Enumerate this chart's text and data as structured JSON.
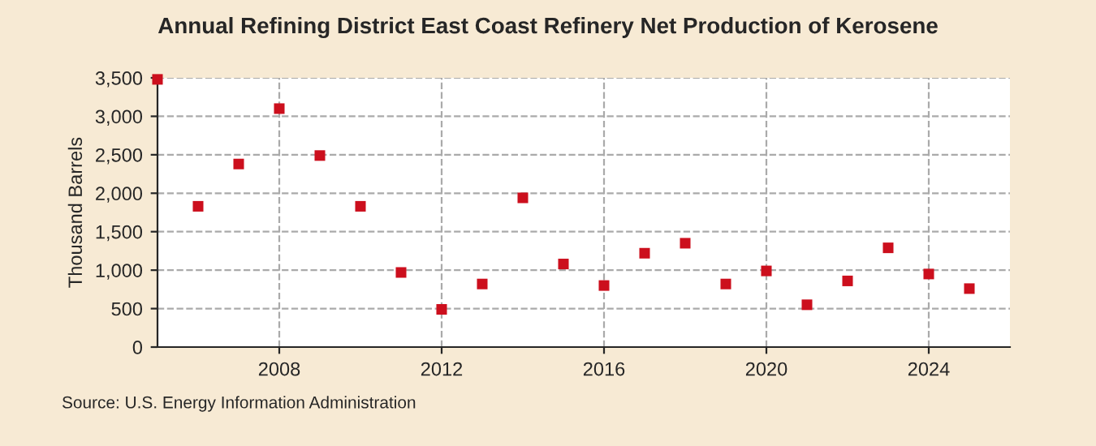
{
  "chart_data": {
    "type": "scatter",
    "title": "Annual Refining District East Coast Refinery Net Production of Kerosene",
    "ylabel": "Thousand Barrels",
    "x": [
      2005,
      2006,
      2007,
      2008,
      2009,
      2010,
      2011,
      2012,
      2013,
      2014,
      2015,
      2016,
      2017,
      2018,
      2019,
      2020,
      2021,
      2022,
      2023,
      2024,
      2025
    ],
    "series": [
      {
        "color": "#cc0f1d",
        "values": [
          3480,
          1830,
          2380,
          3100,
          2490,
          1830,
          970,
          490,
          820,
          1940,
          1080,
          800,
          1220,
          1350,
          820,
          990,
          550,
          860,
          1290,
          950,
          760
        ]
      }
    ],
    "xlim": [
      2005,
      2026
    ],
    "xticks": [
      2008,
      2012,
      2016,
      2020,
      2024
    ],
    "ylim": [
      0,
      3500
    ],
    "yticks": [
      {
        "value": 0,
        "label": "0"
      },
      {
        "value": 500,
        "label": "500"
      },
      {
        "value": 1000,
        "label": "1,000"
      },
      {
        "value": 1500,
        "label": "1,500"
      },
      {
        "value": 2000,
        "label": "2,000"
      },
      {
        "value": 2500,
        "label": "2,500"
      },
      {
        "value": 3000,
        "label": "3,000"
      },
      {
        "value": 3500,
        "label": "3,500"
      }
    ],
    "grid": true,
    "marker": "square",
    "annotations": [
      "Source: U.S. Energy Information Administration"
    ]
  }
}
